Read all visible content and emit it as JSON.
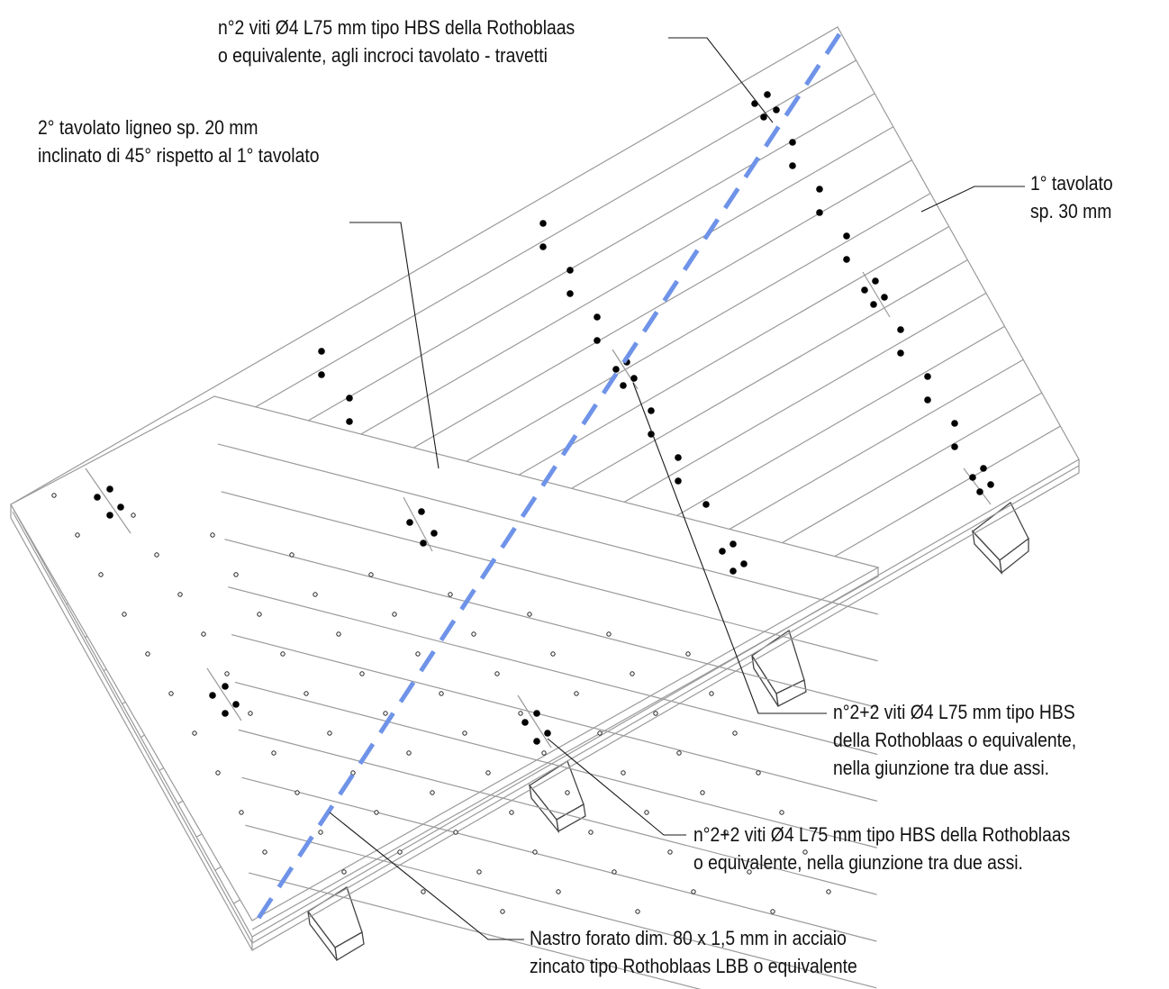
{
  "annotations": {
    "viti_incroci": {
      "line1": "n°2 viti Ø4 L75 mm tipo HBS della Rothoblaas",
      "line2": "o equivalente, agli incroci tavolato - travetti"
    },
    "secondo_tavolato": {
      "line1": "2° tavolato ligneo sp. 20 mm",
      "line2": "inclinato di 45° rispetto al 1° tavolato"
    },
    "primo_tavolato": {
      "line1": "1° tavolato",
      "line2": "sp. 30 mm"
    },
    "viti_giunzione_a": {
      "line1": "n°2+2 viti Ø4 L75 mm tipo HBS",
      "line2": "della Rothoblaas o equivalente,",
      "line3": "nella giunzione  tra due assi."
    },
    "viti_giunzione_b": {
      "line1": "n°2+2 viti Ø4 L75 mm tipo HBS della Rothoblaas",
      "line2": "o equivalente,  nella giunzione tra due assi."
    },
    "nastro": {
      "line1": "Nastro forato dim. 80 x 1,5 mm in acciaio",
      "line2": "zincato tipo Rothoblaas LBB o equivalente"
    }
  },
  "colors": {
    "board_line": "#9a9a9a",
    "leader": "#1a1a1a",
    "screw": "#000000",
    "strap": "#6f93e8"
  }
}
